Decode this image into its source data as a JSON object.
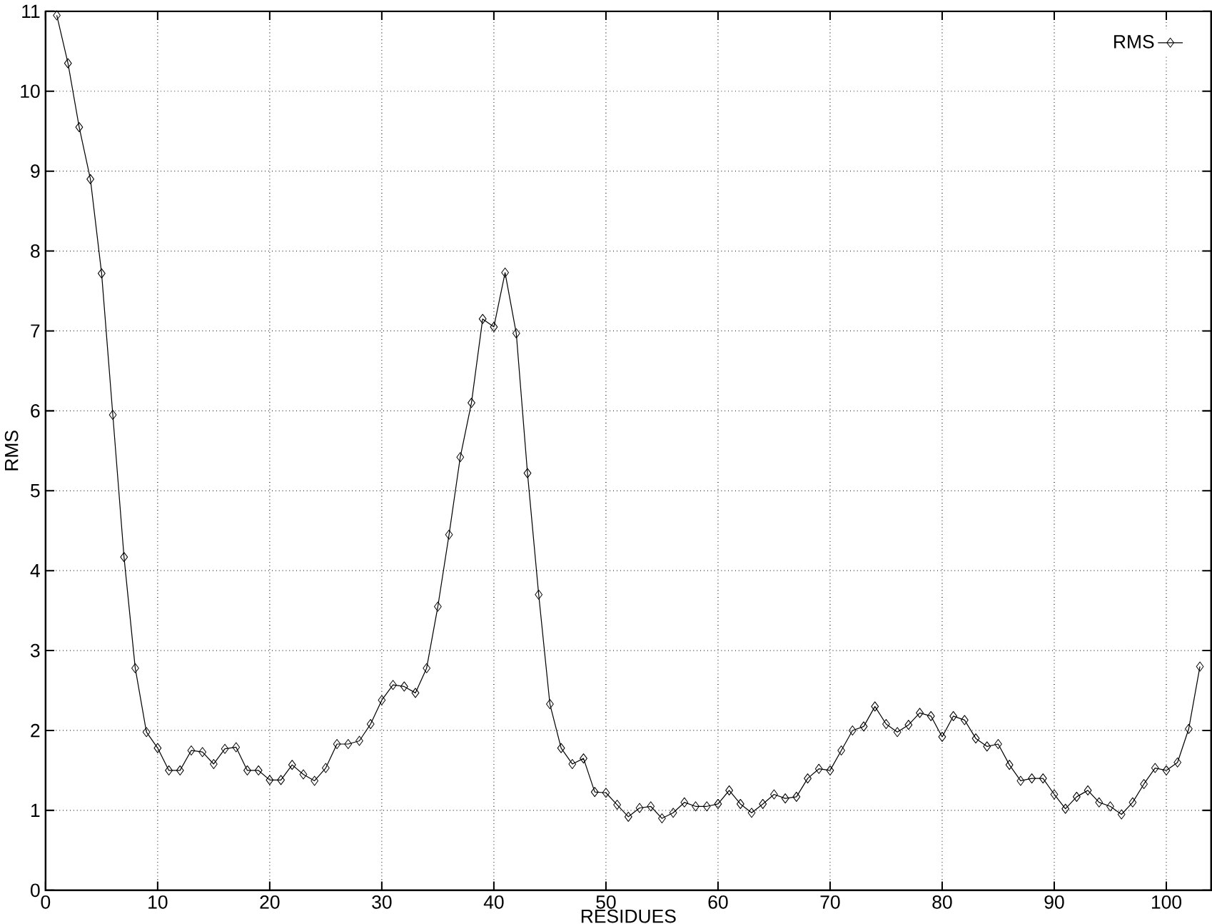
{
  "chart_data": {
    "type": "line",
    "xlabel": "RESIDUES",
    "ylabel": "RMS",
    "x": [
      1,
      2,
      3,
      4,
      5,
      6,
      7,
      8,
      9,
      10,
      11,
      12,
      13,
      14,
      15,
      16,
      17,
      18,
      19,
      20,
      21,
      22,
      23,
      24,
      25,
      26,
      27,
      28,
      29,
      30,
      31,
      32,
      33,
      34,
      35,
      36,
      37,
      38,
      39,
      40,
      41,
      42,
      43,
      44,
      45,
      46,
      47,
      48,
      49,
      50,
      51,
      52,
      53,
      54,
      55,
      56,
      57,
      58,
      59,
      60,
      61,
      62,
      63,
      64,
      65,
      66,
      67,
      68,
      69,
      70,
      71,
      72,
      73,
      74,
      75,
      76,
      77,
      78,
      79,
      80,
      81,
      82,
      83,
      84,
      85,
      86,
      87,
      88,
      89,
      90,
      91,
      92,
      93,
      94,
      95,
      96,
      97,
      98,
      99,
      100,
      101,
      102,
      103
    ],
    "series": [
      {
        "name": "RMS",
        "color": "#000000",
        "values": [
          10.95,
          10.35,
          9.55,
          8.9,
          7.72,
          5.95,
          4.17,
          2.78,
          1.98,
          1.78,
          1.5,
          1.5,
          1.75,
          1.73,
          1.58,
          1.77,
          1.79,
          1.5,
          1.5,
          1.38,
          1.38,
          1.57,
          1.45,
          1.37,
          1.53,
          1.83,
          1.83,
          1.87,
          2.08,
          2.38,
          2.57,
          2.55,
          2.47,
          2.78,
          3.55,
          4.45,
          5.42,
          6.1,
          7.15,
          7.05,
          7.73,
          6.97,
          5.22,
          3.7,
          2.33,
          1.78,
          1.58,
          1.65,
          1.23,
          1.22,
          1.07,
          0.92,
          1.03,
          1.05,
          0.9,
          0.97,
          1.1,
          1.05,
          1.05,
          1.08,
          1.25,
          1.08,
          0.97,
          1.08,
          1.2,
          1.15,
          1.17,
          1.4,
          1.52,
          1.5,
          1.75,
          2.0,
          2.05,
          2.3,
          2.08,
          1.98,
          2.07,
          2.22,
          2.18,
          1.92,
          2.18,
          2.13,
          1.9,
          1.8,
          1.83,
          1.57,
          1.37,
          1.4,
          1.4,
          1.2,
          1.02,
          1.17,
          1.25,
          1.1,
          1.05,
          0.95,
          1.1,
          1.33,
          1.53,
          1.5,
          1.6,
          2.02,
          2.8
        ]
      }
    ],
    "xlim": [
      0,
      104
    ],
    "ylim": [
      0,
      11
    ],
    "xticks": [
      0,
      10,
      20,
      30,
      40,
      50,
      60,
      70,
      80,
      90,
      100
    ],
    "yticks": [
      0,
      1,
      2,
      3,
      4,
      5,
      6,
      7,
      8,
      9,
      10,
      11
    ],
    "grid": true,
    "legend": "top right",
    "marker": "diamond",
    "line_style": "solid"
  }
}
